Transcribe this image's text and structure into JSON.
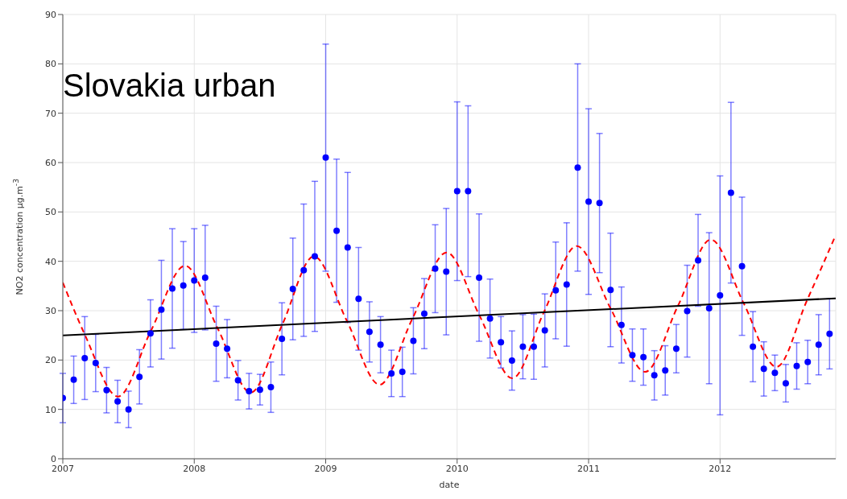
{
  "chart_data": {
    "type": "scatter",
    "xlabel": "date",
    "ylabel": "NO2 concentration μg.m$^{-3}$",
    "annotations": [
      "Slovakia urban"
    ],
    "xlim": [
      2007,
      2012.88
    ],
    "xticks": [
      2007,
      2008,
      2009,
      2010,
      2011,
      2012
    ],
    "ylim": [
      0,
      90
    ],
    "yticks": [
      0,
      10,
      20,
      30,
      40,
      50,
      60,
      70,
      80,
      90
    ],
    "grid": true,
    "legend": false,
    "series": [
      {
        "type": "scatter",
        "color": "#0000ff",
        "marker": "circle",
        "x": [
          2007,
          2007.083,
          2007.167,
          2007.25,
          2007.333,
          2007.417,
          2007.5,
          2007.583,
          2007.667,
          2007.75,
          2007.833,
          2007.917,
          2008,
          2008.083,
          2008.167,
          2008.25,
          2008.333,
          2008.417,
          2008.5,
          2008.583,
          2008.667,
          2008.75,
          2008.833,
          2008.917,
          2009,
          2009.083,
          2009.167,
          2009.25,
          2009.333,
          2009.417,
          2009.5,
          2009.583,
          2009.667,
          2009.75,
          2009.833,
          2009.917,
          2010,
          2010.083,
          2010.167,
          2010.25,
          2010.333,
          2010.417,
          2010.5,
          2010.583,
          2010.667,
          2010.75,
          2010.833,
          2010.917,
          2011,
          2011.083,
          2011.167,
          2011.25,
          2011.333,
          2011.417,
          2011.5,
          2011.583,
          2011.667,
          2011.75,
          2011.833,
          2011.917,
          2012,
          2012.083,
          2012.167,
          2012.25,
          2012.333,
          2012.417,
          2012.5,
          2012.583,
          2012.667,
          2012.75,
          2012.833
        ],
        "values": [
          12.3,
          16.0,
          20.4,
          19.4,
          13.9,
          11.6,
          10.0,
          16.6,
          25.4,
          30.2,
          34.5,
          35.1,
          36.1,
          36.7,
          23.3,
          22.3,
          15.9,
          13.7,
          14.0,
          14.5,
          24.3,
          34.4,
          38.2,
          41.0,
          61.0,
          46.2,
          42.8,
          32.4,
          25.7,
          23.1,
          17.3,
          17.6,
          23.9,
          29.4,
          38.5,
          37.9,
          54.2,
          54.2,
          36.7,
          28.4,
          23.6,
          19.9,
          22.7,
          22.7,
          26.0,
          34.1,
          35.3,
          59.0,
          52.1,
          51.8,
          34.2,
          27.1,
          21.0,
          20.6,
          16.9,
          17.9,
          22.3,
          29.9,
          40.2,
          30.5,
          33.1,
          53.9,
          39.0,
          22.7,
          18.2,
          17.4,
          15.3,
          18.8,
          19.6,
          23.1,
          25.3
        ],
        "errors": [
          5.0,
          4.8,
          8.4,
          5.8,
          4.6,
          4.3,
          3.7,
          5.5,
          6.8,
          10.0,
          12.1,
          8.9,
          10.5,
          10.6,
          7.6,
          5.9,
          4.0,
          3.6,
          3.1,
          5.1,
          7.3,
          10.3,
          13.4,
          15.2,
          23.0,
          14.5,
          15.2,
          10.4,
          6.1,
          5.7,
          4.7,
          5.0,
          6.7,
          7.1,
          8.9,
          12.8,
          18.1,
          17.3,
          12.9,
          8.0,
          5.2,
          6.0,
          6.5,
          6.6,
          7.4,
          9.8,
          12.5,
          21.0,
          18.8,
          14.1,
          11.5,
          7.7,
          5.3,
          5.7,
          5.0,
          5.0,
          4.9,
          9.3,
          9.3,
          15.3,
          24.2,
          18.3,
          14.0,
          7.1,
          5.5,
          3.6,
          3.8,
          4.7,
          4.4,
          6.1,
          7.1
        ]
      },
      {
        "type": "line",
        "color": "#ff0000",
        "line_style": "dashed",
        "marker": "none",
        "x": [
          2007,
          2007.17,
          2007.42,
          2007.67,
          2007.93,
          2008.18,
          2008.43,
          2008.67,
          2008.91,
          2009.16,
          2009.41,
          2009.66,
          2009.92,
          2010.17,
          2010.42,
          2010.66,
          2010.91,
          2011.17,
          2011.43,
          2011.68,
          2011.93,
          2012.18,
          2012.43,
          2012.66,
          2012.88
        ],
        "values": [
          35.7,
          25.0,
          12.6,
          25.9,
          39.1,
          26.3,
          13.4,
          27.2,
          41.0,
          28.0,
          15.0,
          28.4,
          41.8,
          29.0,
          16.3,
          29.7,
          43.1,
          30.3,
          17.6,
          31.0,
          44.4,
          31.5,
          18.6,
          32.0,
          45.3
        ]
      },
      {
        "type": "line",
        "color": "#000000",
        "line_style": "solid",
        "marker": "none",
        "x": [
          2007,
          2012.88
        ],
        "values": [
          25.0,
          32.5
        ]
      }
    ]
  }
}
